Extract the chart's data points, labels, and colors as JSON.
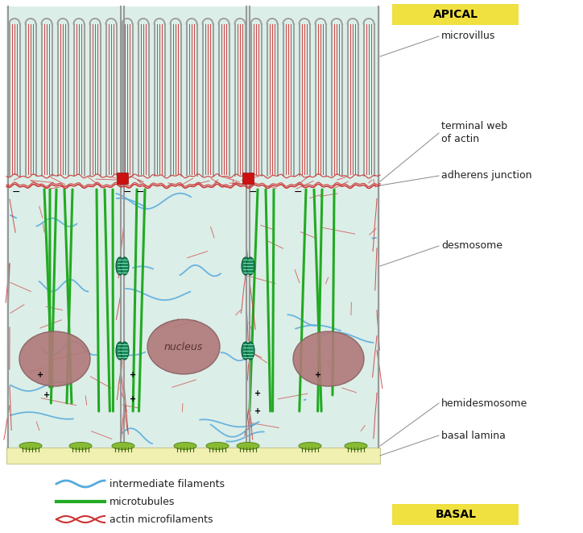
{
  "background_color": "#ffffff",
  "cell_bg": "#dceee8",
  "apical_label_bg": "#f0e040",
  "basal_label_bg": "#f0e040",
  "apical_text": "APICAL",
  "basal_text": "BASAL",
  "microvillus_label": "microvillus",
  "terminal_web_label": "terminal web\nof actin",
  "adherens_junction_label": "adherens junction",
  "desmosome_label": "desmosome",
  "hemidesmosome_label": "hemidesmosome",
  "basal_lamina_label": "basal lamina",
  "nucleus_label": "nucleus",
  "legend_intermediate": "intermediate filaments",
  "legend_microtubules": "microtubules",
  "legend_actin": "actin microfilaments",
  "actin_color": "#cc3333",
  "microtubule_color": "#22aa22",
  "intermediate_color": "#55aadd",
  "membrane_color": "#999999",
  "desmosome_color": "#1a8a5a",
  "adherens_color": "#cc2020",
  "hemi_color": "#88bb33",
  "nucleus_color": "#b07878",
  "basal_lamina_color": "#f0f0b0",
  "basal_lamina_border": "#c8c890",
  "annotation_line_color": "#888888",
  "text_color": "#222222",
  "fig_width": 7.24,
  "fig_height": 6.61,
  "dpi": 100
}
